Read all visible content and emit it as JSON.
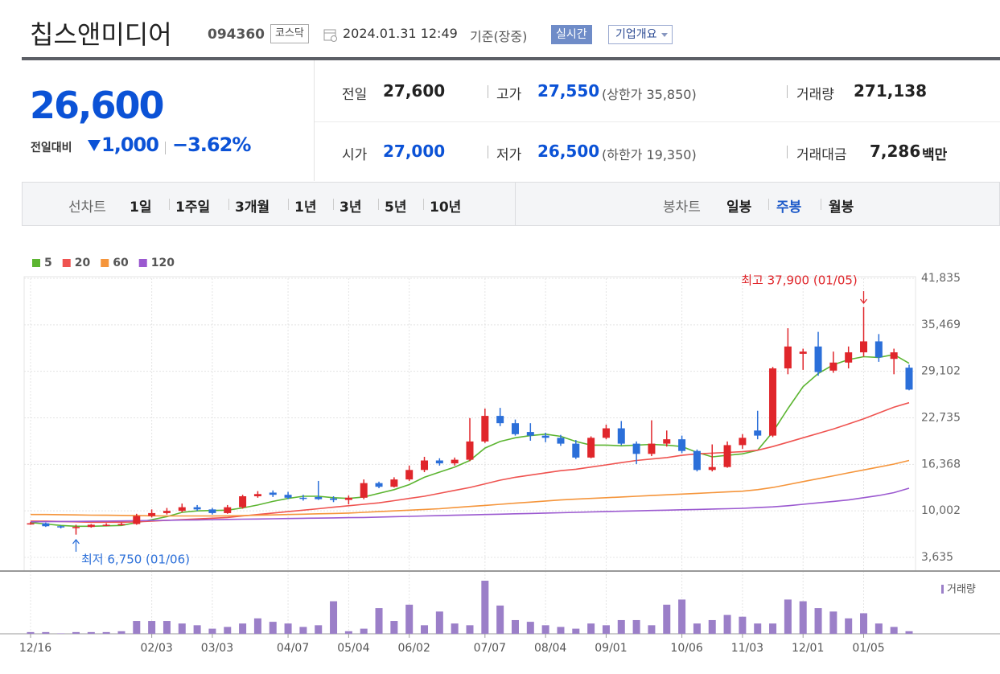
{
  "header": {
    "name": "칩스앤미디어",
    "code": "094360",
    "market": "코스닥",
    "time": "2024.01.31 12:49",
    "basis": "기준(장중)",
    "realtime": "실시간",
    "company": "기업개요"
  },
  "quote": {
    "price": "26,600",
    "change_label": "전일대비",
    "change": "1,000",
    "rate": "−3.62%",
    "rows": [
      [
        {
          "label": "전일",
          "value": "27,600"
        },
        {
          "label": "고가",
          "value": "27,550",
          "note": "(상한가 35,850)"
        },
        {
          "label": "거래량",
          "value": "271,138"
        }
      ],
      [
        {
          "label": "시가",
          "value": "27,000"
        },
        {
          "label": "저가",
          "value": "26,500",
          "note": "(하한가 19,350)"
        },
        {
          "label": "거래대금",
          "value": "7,286",
          "unit": "백만"
        }
      ]
    ]
  },
  "tabs": {
    "line_label": "선차트",
    "line": [
      "1일",
      "1주일",
      "3개월",
      "1년",
      "3년",
      "5년",
      "10년"
    ],
    "candle_label": "봉차트",
    "candle": [
      "일봉",
      "주봉",
      "월봉"
    ]
  },
  "chart_data": {
    "type": "candlestick",
    "categories": [
      "12/16",
      null,
      null,
      null,
      null,
      null,
      null,
      null,
      "02/03",
      null,
      null,
      null,
      "03/03",
      null,
      null,
      null,
      null,
      "04/07",
      null,
      null,
      null,
      "05/04",
      null,
      null,
      null,
      "06/02",
      null,
      null,
      null,
      null,
      "07/07",
      null,
      null,
      null,
      "08/04",
      null,
      null,
      null,
      "09/01",
      null,
      null,
      null,
      null,
      "10/06",
      null,
      null,
      null,
      "11/03",
      null,
      null,
      null,
      "12/01",
      null,
      null,
      null,
      "01/05",
      null,
      null,
      null
    ],
    "ohlc": [
      [
        8200,
        8500,
        8100,
        8300
      ],
      [
        8300,
        8400,
        7800,
        7900
      ],
      [
        7900,
        8000,
        7600,
        7750
      ],
      [
        7750,
        8100,
        6750,
        7800
      ],
      [
        7800,
        8200,
        7700,
        8100
      ],
      [
        8000,
        8300,
        7900,
        8100
      ],
      [
        8100,
        8400,
        8000,
        8200
      ],
      [
        8200,
        9600,
        8100,
        9300
      ],
      [
        9300,
        10200,
        9100,
        9700
      ],
      [
        9700,
        10400,
        9500,
        10000
      ],
      [
        10000,
        11000,
        9800,
        10500
      ],
      [
        10500,
        10800,
        10000,
        10200
      ],
      [
        10200,
        10400,
        9500,
        9700
      ],
      [
        9700,
        10800,
        9600,
        10500
      ],
      [
        10500,
        12200,
        10300,
        12000
      ],
      [
        12000,
        12700,
        11800,
        12300
      ],
      [
        12500,
        12800,
        11900,
        12200
      ],
      [
        12200,
        12600,
        11600,
        11800
      ],
      [
        11800,
        12200,
        11400,
        11700
      ],
      [
        11900,
        14100,
        11500,
        11600
      ],
      [
        11700,
        12000,
        11200,
        11500
      ],
      [
        11500,
        12100,
        10900,
        11800
      ],
      [
        11800,
        14300,
        11600,
        13800
      ],
      [
        13800,
        14000,
        13100,
        13300
      ],
      [
        13300,
        14600,
        13200,
        14300
      ],
      [
        14300,
        16200,
        14100,
        15600
      ],
      [
        15600,
        17400,
        15300,
        16900
      ],
      [
        16900,
        17200,
        16200,
        16500
      ],
      [
        16500,
        17300,
        16200,
        17000
      ],
      [
        17000,
        22700,
        16800,
        19500
      ],
      [
        19500,
        24000,
        19300,
        23000
      ],
      [
        23000,
        24100,
        21600,
        22000
      ],
      [
        22000,
        22500,
        20300,
        20500
      ],
      [
        20800,
        22000,
        19600,
        20300
      ],
      [
        20300,
        20700,
        19400,
        20000
      ],
      [
        20000,
        20400,
        18900,
        19200
      ],
      [
        19200,
        19700,
        17100,
        17300
      ],
      [
        17300,
        20200,
        17200,
        20000
      ],
      [
        20000,
        21800,
        19800,
        21300
      ],
      [
        21300,
        22300,
        19000,
        19200
      ],
      [
        19200,
        19500,
        16400,
        17800
      ],
      [
        17800,
        22400,
        17500,
        19200
      ],
      [
        19200,
        21000,
        18800,
        19800
      ],
      [
        19800,
        20300,
        17900,
        18200
      ],
      [
        18200,
        18400,
        15400,
        15600
      ],
      [
        15600,
        19100,
        15400,
        16000
      ],
      [
        16000,
        19500,
        15900,
        19000
      ],
      [
        19000,
        20500,
        18500,
        20000
      ],
      [
        21000,
        23700,
        19800,
        20300
      ],
      [
        20300,
        29700,
        20100,
        29500
      ],
      [
        29500,
        35000,
        28700,
        32500
      ],
      [
        31500,
        32200,
        29300,
        31800
      ],
      [
        32500,
        34500,
        28500,
        29000
      ],
      [
        29200,
        31800,
        28900,
        30300
      ],
      [
        30300,
        32500,
        29500,
        31700
      ],
      [
        31700,
        37900,
        31100,
        33200
      ],
      [
        33200,
        34200,
        30400,
        31000
      ],
      [
        30800,
        32200,
        28700,
        31700
      ],
      [
        29600,
        30000,
        26500,
        26600
      ]
    ],
    "up_color": "#e0262b",
    "down_color": "#2b6fd9",
    "volume": [
      40000,
      40000,
      10000,
      40000,
      40000,
      40000,
      60000,
      300000,
      300000,
      300000,
      240000,
      200000,
      120000,
      160000,
      240000,
      360000,
      280000,
      240000,
      160000,
      200000,
      760000,
      60000,
      120000,
      600000,
      300000,
      680000,
      200000,
      520000,
      240000,
      200000,
      1240000,
      660000,
      320000,
      280000,
      200000,
      160000,
      120000,
      240000,
      200000,
      320000,
      320000,
      200000,
      680000,
      800000,
      240000,
      320000,
      440000,
      400000,
      240000,
      240000,
      800000,
      760000,
      600000,
      520000,
      360000,
      480000,
      240000,
      160000,
      60000
    ],
    "volume_label": "거래량",
    "volume_color": "#9b7fc8",
    "series": [
      {
        "name": "5",
        "color": "#5cb531",
        "values": [
          8400,
          8200,
          8000,
          7900,
          7900,
          7950,
          8000,
          8400,
          8800,
          9200,
          9800,
          10000,
          10050,
          10100,
          10400,
          10800,
          11300,
          11700,
          12000,
          12000,
          11800,
          11700,
          11900,
          12400,
          12900,
          13600,
          14600,
          15300,
          16000,
          16900,
          18600,
          19500,
          20000,
          20300,
          20500,
          20200,
          19500,
          19000,
          19000,
          18900,
          19000,
          19100,
          19000,
          18800,
          18000,
          17400,
          17600,
          17800,
          18300,
          20800,
          24000,
          27000,
          28800,
          30000,
          30700,
          31100,
          31000,
          31400,
          30200
        ]
      },
      {
        "name": "20",
        "color": "#ef5350",
        "values": [
          8600,
          8600,
          8550,
          8500,
          8450,
          8450,
          8450,
          8500,
          8600,
          8700,
          8800,
          8900,
          9000,
          9100,
          9300,
          9500,
          9700,
          9900,
          10100,
          10300,
          10500,
          10700,
          10900,
          11100,
          11400,
          11700,
          12000,
          12400,
          12800,
          13200,
          13700,
          14200,
          14600,
          14900,
          15200,
          15500,
          15700,
          16000,
          16300,
          16600,
          16900,
          17100,
          17300,
          17600,
          17800,
          17900,
          18000,
          18100,
          18300,
          18800,
          19400,
          20000,
          20600,
          21200,
          21900,
          22600,
          23400,
          24200,
          24800
        ]
      },
      {
        "name": "60",
        "color": "#f5953b",
        "values": [
          9500,
          9500,
          9480,
          9450,
          9420,
          9400,
          9380,
          9350,
          9330,
          9300,
          9300,
          9300,
          9300,
          9320,
          9350,
          9400,
          9450,
          9500,
          9550,
          9600,
          9650,
          9700,
          9800,
          9900,
          10000,
          10100,
          10200,
          10300,
          10450,
          10600,
          10750,
          10900,
          11050,
          11200,
          11350,
          11500,
          11600,
          11700,
          11800,
          11900,
          12000,
          12100,
          12200,
          12300,
          12400,
          12500,
          12600,
          12700,
          12900,
          13200,
          13600,
          14000,
          14400,
          14800,
          15200,
          15600,
          16000,
          16400,
          16900
        ]
      },
      {
        "name": "120",
        "color": "#9b59d0",
        "values": [
          8500,
          8520,
          8540,
          8560,
          8580,
          8600,
          8620,
          8650,
          8680,
          8710,
          8740,
          8770,
          8800,
          8830,
          8860,
          8890,
          8920,
          8950,
          8980,
          9010,
          9040,
          9070,
          9100,
          9150,
          9200,
          9250,
          9300,
          9350,
          9400,
          9450,
          9500,
          9550,
          9600,
          9650,
          9700,
          9750,
          9800,
          9850,
          9900,
          9950,
          10000,
          10050,
          10100,
          10150,
          10200,
          10250,
          10300,
          10350,
          10450,
          10550,
          10700,
          10900,
          11100,
          11300,
          11500,
          11800,
          12100,
          12500,
          13100
        ]
      }
    ],
    "ylim": [
      3635,
      41835
    ],
    "yticks": [
      {
        "value": 3635,
        "label": "3,635"
      },
      {
        "value": 10002,
        "label": "10,002"
      },
      {
        "value": 16368,
        "label": "16,368"
      },
      {
        "value": 22735,
        "label": "22,735"
      },
      {
        "value": 29102,
        "label": "29,102"
      },
      {
        "value": 35469,
        "label": "35,469"
      },
      {
        "value": 41835,
        "label": "41,835"
      }
    ],
    "grid": true,
    "annotations": {
      "high": "최고 37,900 (01/05)",
      "low": "최저 6,750 (01/06)"
    }
  }
}
